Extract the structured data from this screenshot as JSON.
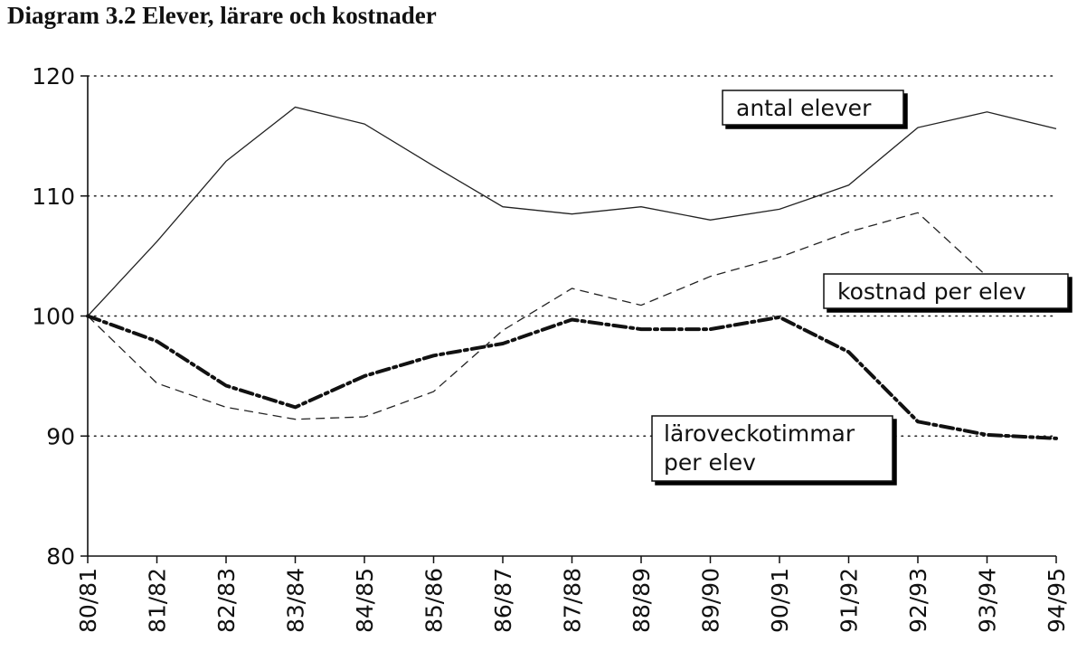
{
  "title": "Diagram 3.2  Elever, lärare och kostnader",
  "chart_data": {
    "type": "line",
    "title": "Diagram 3.2  Elever, lärare och kostnader",
    "xlabel": "",
    "ylabel": "",
    "ylim": [
      80,
      120
    ],
    "yticks": [
      "80",
      "90",
      "100",
      "110",
      "120"
    ],
    "grid": "horizontal dotted",
    "categories": [
      "80/81",
      "81/82",
      "82/83",
      "83/84",
      "84/85",
      "85/86",
      "86/87",
      "87/88",
      "88/89",
      "89/90",
      "90/91",
      "91/92",
      "92/93",
      "93/94",
      "94/95"
    ],
    "series": [
      {
        "name": "antal elever",
        "style": "solid",
        "values": [
          100,
          106.2,
          112.9,
          117.4,
          116.0,
          112.5,
          109.1,
          108.5,
          109.1,
          108.0,
          108.9,
          110.9,
          115.7,
          117.0,
          115.6
        ]
      },
      {
        "name": "kostnad per elev",
        "style": "dashed",
        "values": [
          100,
          94.4,
          92.4,
          91.4,
          91.6,
          93.7,
          98.8,
          102.3,
          100.9,
          103.3,
          104.9,
          107.0,
          108.6,
          103.3,
          102.1
        ]
      },
      {
        "name": "läroveckotimmar per elev",
        "style": "dash-dot-bold",
        "values": [
          100,
          97.9,
          94.2,
          92.4,
          95.0,
          96.7,
          97.7,
          99.7,
          98.9,
          98.9,
          99.9,
          97.0,
          91.2,
          90.1,
          89.8
        ]
      }
    ],
    "labels": {
      "antal_elever": "antal elever",
      "kostnad_per_elev": "kostnad per elev",
      "laroveckotimmar_line1": "läroveckotimmar",
      "laroveckotimmar_line2": "per elev"
    }
  }
}
